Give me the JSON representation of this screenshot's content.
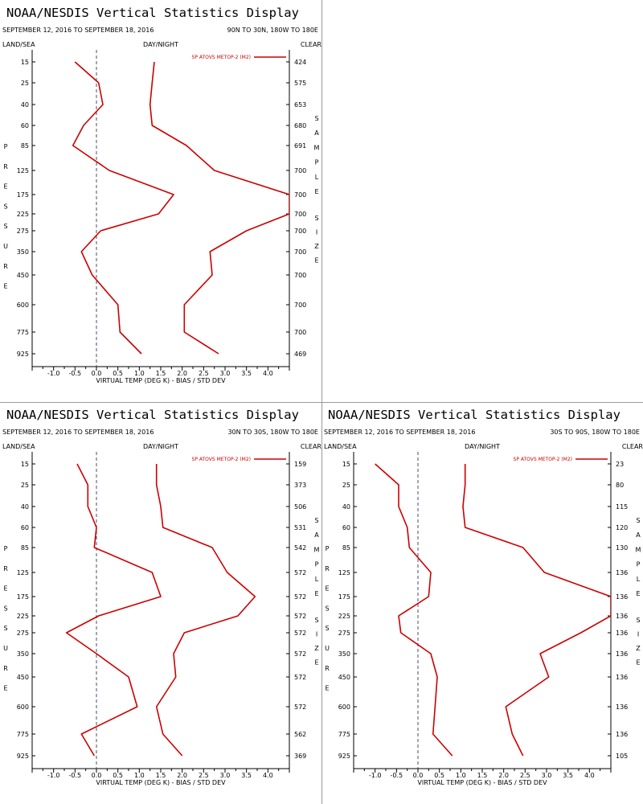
{
  "header": {
    "title": "NOAA/NESDIS Vertical Statistics Display",
    "date_range": "SEPTEMBER 12, 2016 TO SEPTEMBER 18, 2016",
    "land_sea": "LAND/SEA",
    "day_night": "DAY/NIGHT",
    "clear": "CLEAR",
    "xlabel": "VIRTUAL TEMP (DEG K) - BIAS / STD DEV",
    "side_left": "PRESSURE",
    "side_right_top": "SAMPLE",
    "side_right_bottom": "SIZE"
  },
  "colors": {
    "series": "#cc0000",
    "axes": "#000000",
    "zero_line": "#4b4b6e"
  },
  "chart_data": [
    {
      "type": "line",
      "region": "90N TO 30N, 180W TO 180E",
      "legend": "SP ATOVS METOP-2 (M2)",
      "pressure_levels": [
        "15",
        "25",
        "40",
        "60",
        "85",
        "125",
        "175",
        "225",
        "275",
        "350",
        "450",
        "600",
        "775",
        "925"
      ],
      "sample_size": [
        "424",
        "575",
        "653",
        "680",
        "691",
        "700",
        "700",
        "700",
        "700",
        "700",
        "700",
        "700",
        "700",
        "469"
      ],
      "xlim": [
        -1.5,
        4.5
      ],
      "xticks": [
        "-1.0",
        "-0.5",
        "0.0",
        "0.5",
        "1.0",
        "1.5",
        "2.0",
        "2.5",
        "3.0",
        "3.5",
        "4.0"
      ],
      "series": [
        {
          "kind": "bias",
          "values": [
            -0.5,
            0.05,
            0.15,
            -0.3,
            -0.55,
            0.3,
            1.8,
            1.45,
            0.1,
            -0.35,
            -0.1,
            0.5,
            0.55,
            1.05
          ]
        },
        {
          "kind": "std_dev",
          "values": [
            1.35,
            1.3,
            1.25,
            1.3,
            2.1,
            2.75,
            4.5,
            4.5,
            3.5,
            2.65,
            2.7,
            2.05,
            2.05,
            2.85
          ]
        }
      ]
    },
    {
      "type": "line",
      "region": "30N TO 30S, 180W TO 180E",
      "legend": "SP ATOVS METOP-2 (M2)",
      "pressure_levels": [
        "15",
        "25",
        "40",
        "60",
        "85",
        "125",
        "175",
        "225",
        "275",
        "350",
        "450",
        "600",
        "775",
        "925"
      ],
      "sample_size": [
        "159",
        "373",
        "506",
        "531",
        "542",
        "572",
        "572",
        "572",
        "572",
        "572",
        "572",
        "572",
        "562",
        "369"
      ],
      "xlim": [
        -1.5,
        4.5
      ],
      "xticks": [
        "-1.0",
        "-0.5",
        "0.0",
        "0.5",
        "1.0",
        "1.5",
        "2.0",
        "2.5",
        "3.0",
        "3.5",
        "4.0"
      ],
      "series": [
        {
          "kind": "bias",
          "values": [
            -0.45,
            -0.2,
            -0.2,
            0.0,
            -0.05,
            1.3,
            1.5,
            0.05,
            -0.7,
            0.0,
            0.75,
            0.95,
            -0.35,
            -0.05
          ]
        },
        {
          "kind": "std_dev",
          "values": [
            1.4,
            1.4,
            1.5,
            1.55,
            2.7,
            3.05,
            3.7,
            3.3,
            2.05,
            1.8,
            1.85,
            1.4,
            1.55,
            2.0
          ]
        }
      ]
    },
    {
      "type": "line",
      "region": "30S TO 90S, 180W TO 180E",
      "legend": "SP ATOVS METOP-2 (M2)",
      "pressure_levels": [
        "15",
        "25",
        "40",
        "60",
        "85",
        "125",
        "175",
        "225",
        "275",
        "350",
        "450",
        "600",
        "775",
        "925"
      ],
      "sample_size": [
        "23",
        "80",
        "115",
        "120",
        "130",
        "136",
        "136",
        "136",
        "136",
        "136",
        "136",
        "136",
        "136",
        "105"
      ],
      "xlim": [
        -1.5,
        4.5
      ],
      "xticks": [
        "-1.0",
        "-0.5",
        "0.0",
        "0.5",
        "1.0",
        "1.5",
        "2.0",
        "2.5",
        "3.0",
        "3.5",
        "4.0"
      ],
      "series": [
        {
          "kind": "bias",
          "values": [
            -1.0,
            -0.45,
            -0.45,
            -0.25,
            -0.2,
            0.3,
            0.25,
            -0.45,
            -0.4,
            0.3,
            0.45,
            0.4,
            0.35,
            0.8
          ]
        },
        {
          "kind": "std_dev",
          "values": [
            1.1,
            1.1,
            1.05,
            1.1,
            2.45,
            2.95,
            4.5,
            4.5,
            3.8,
            2.85,
            3.05,
            2.05,
            2.2,
            2.45
          ]
        }
      ]
    }
  ]
}
